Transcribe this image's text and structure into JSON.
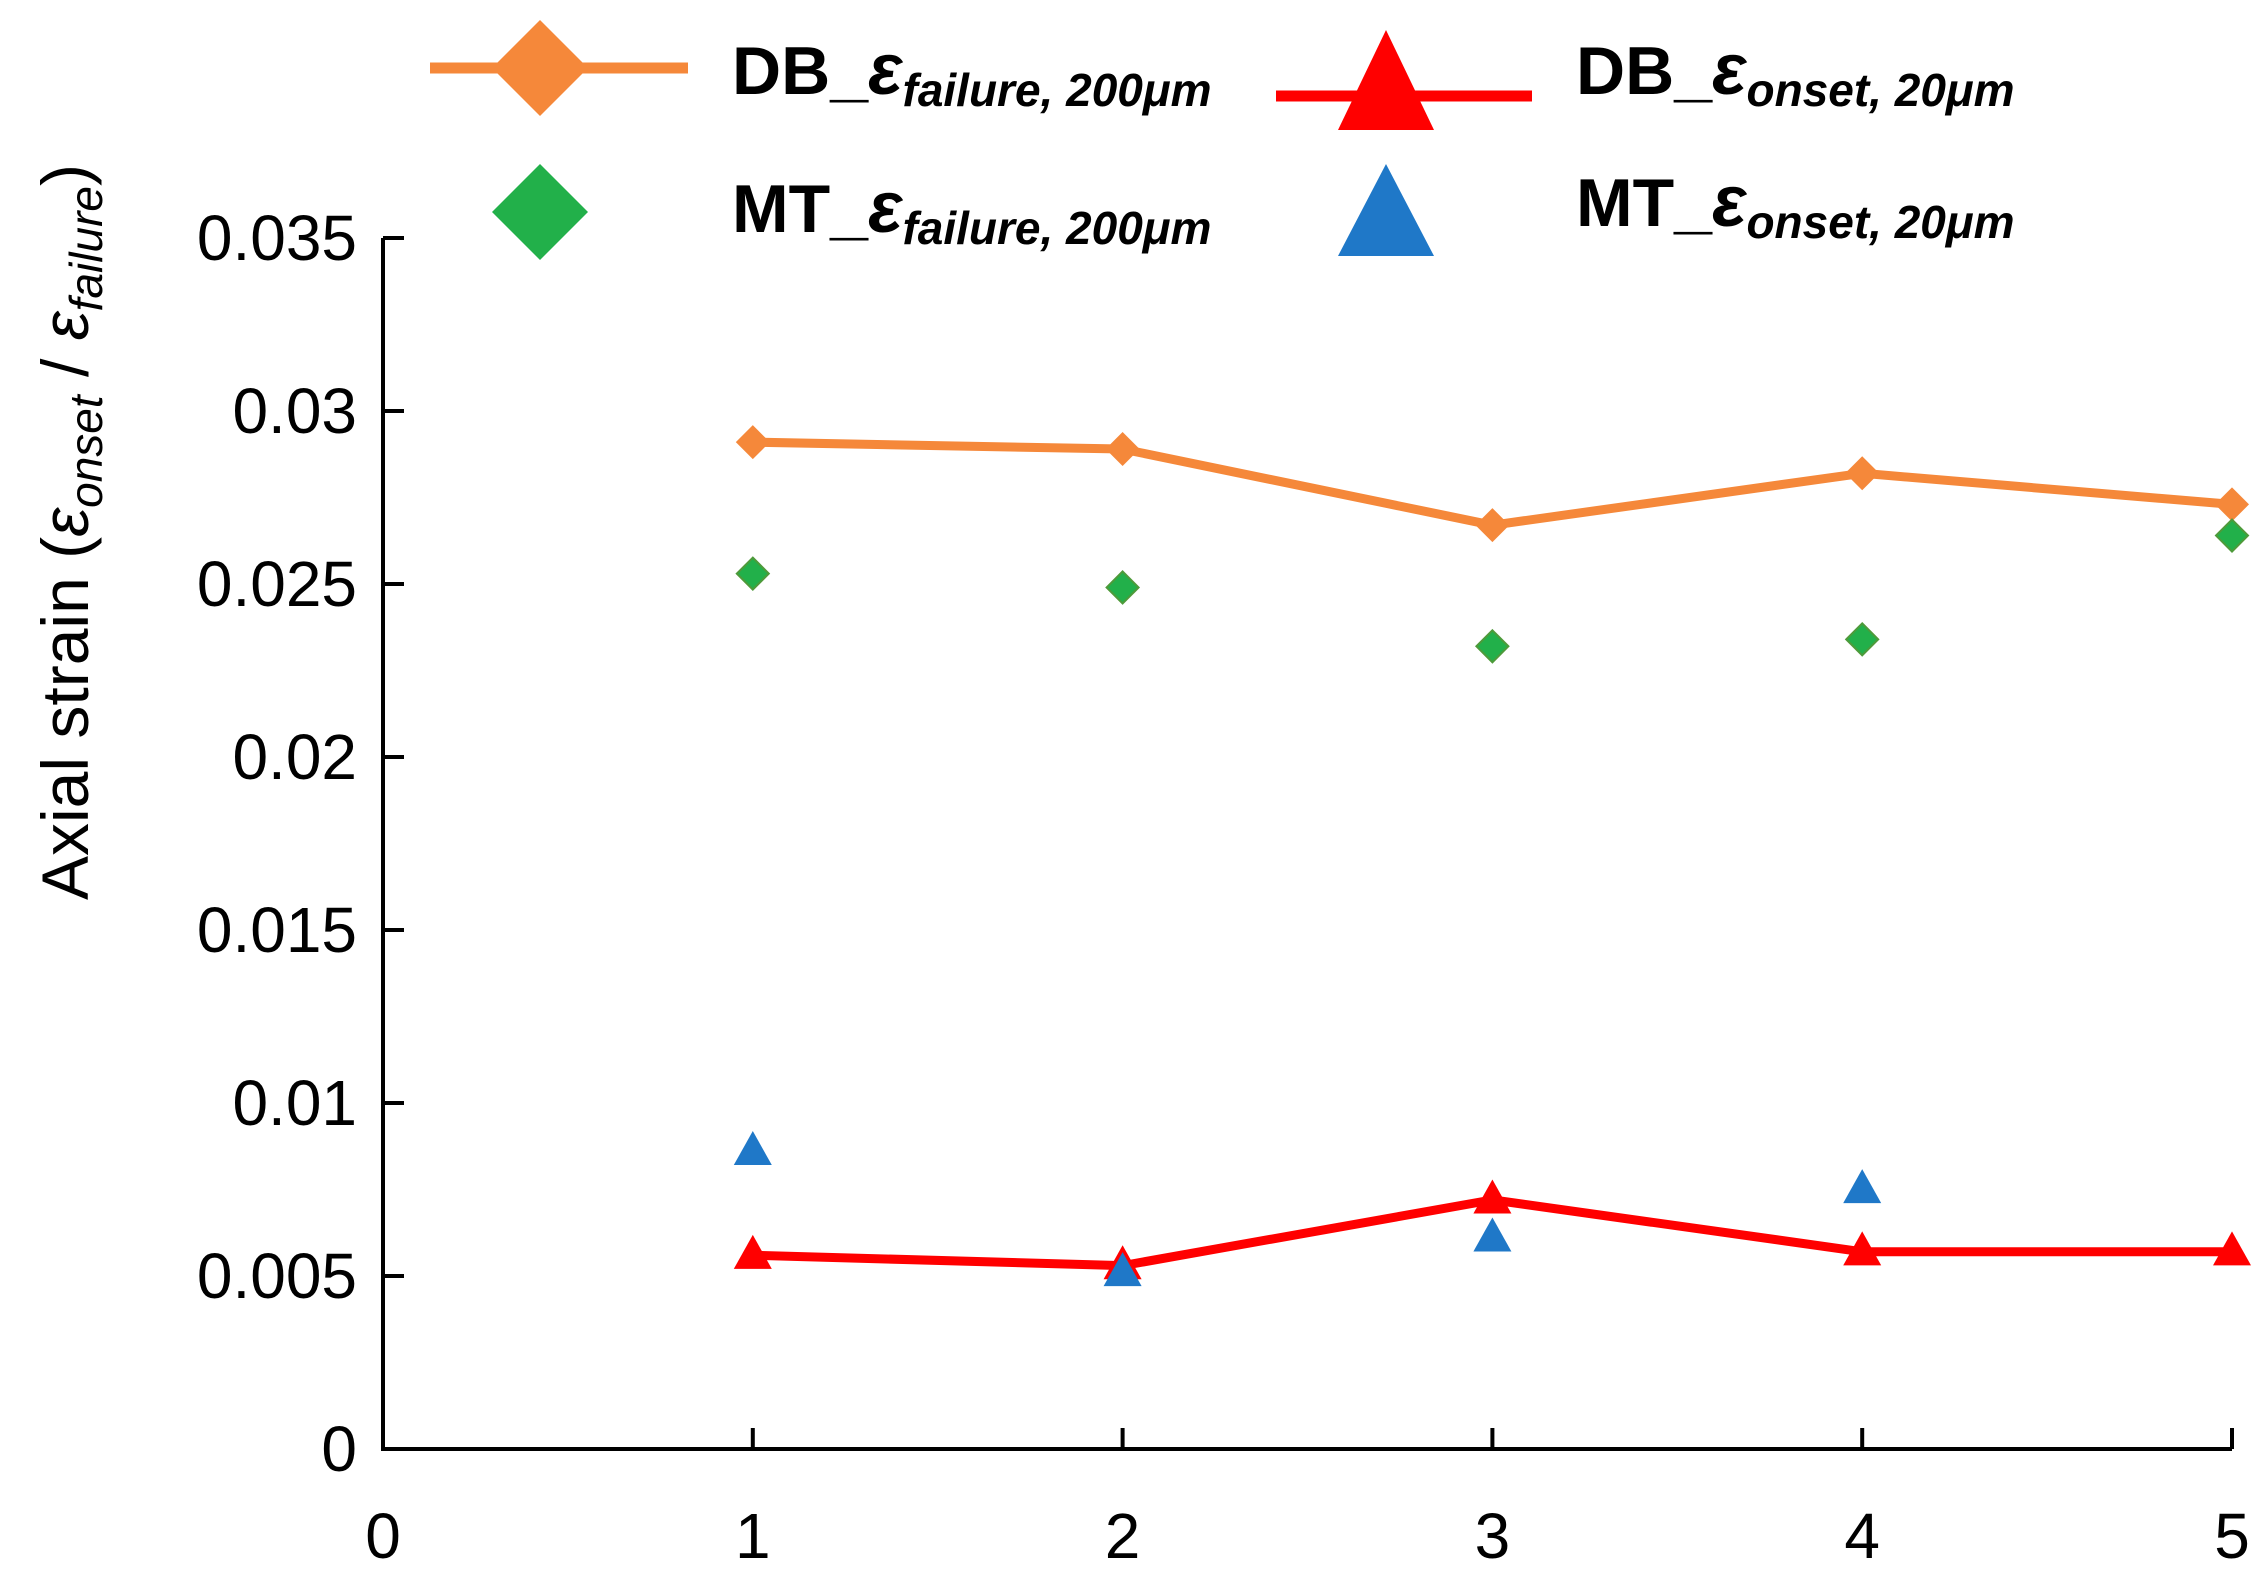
{
  "chart_data": {
    "type": "line",
    "title": "",
    "xlabel": "",
    "ylabel": {
      "main": "Axial strain (",
      "sym1": "ε",
      "sub1": "onset",
      "sep": " / ",
      "sym2": "ε",
      "sub2": "failure",
      "close": ")"
    },
    "xlim": [
      0,
      5
    ],
    "ylim": [
      0,
      0.035
    ],
    "x_ticks": [
      "0",
      "1",
      "2",
      "3",
      "4",
      "5"
    ],
    "y_ticks": [
      "0",
      "0.005",
      "0.01",
      "0.015",
      "0.02",
      "0.025",
      "0.03",
      "0.035"
    ],
    "grid": false,
    "legend_position": "top",
    "series": [
      {
        "name": "DB_εfailure, 200μm",
        "label": {
          "prefix": "DB_",
          "sym": "ε",
          "sub": "failure, 200μm"
        },
        "color": "#F5883A",
        "marker": "diamond",
        "line": true,
        "x": [
          1,
          2,
          3,
          4,
          5
        ],
        "values": [
          0.0291,
          0.0289,
          0.0267,
          0.0282,
          0.0273
        ]
      },
      {
        "name": "DB_εonset, 20μm",
        "label": {
          "prefix": "DB_",
          "sym": "ε",
          "sub": "onset, 20μm"
        },
        "color": "#FF0000",
        "marker": "triangle",
        "line": true,
        "x": [
          1,
          2,
          3,
          4,
          5
        ],
        "values": [
          0.0056,
          0.0053,
          0.0072,
          0.0057,
          0.0057
        ]
      },
      {
        "name": "MT_εfailure, 200μm",
        "label": {
          "prefix": "MT_",
          "sym": "ε",
          "sub": "failure, 200μm"
        },
        "color": "#22B04A",
        "marker": "diamond",
        "line": false,
        "x": [
          1,
          2,
          3,
          4,
          5
        ],
        "values": [
          0.0253,
          0.0249,
          0.0232,
          0.0234,
          0.0264
        ]
      },
      {
        "name": "MT_εonset, 20μm",
        "label": {
          "prefix": "MT_",
          "sym": "ε",
          "sub": "onset, 20μm"
        },
        "color": "#1F78C8",
        "marker": "triangle",
        "line": false,
        "x": [
          1,
          2,
          3,
          4,
          5
        ],
        "values": [
          0.0086,
          0.0051,
          0.0061,
          0.0075,
          null
        ]
      }
    ]
  }
}
